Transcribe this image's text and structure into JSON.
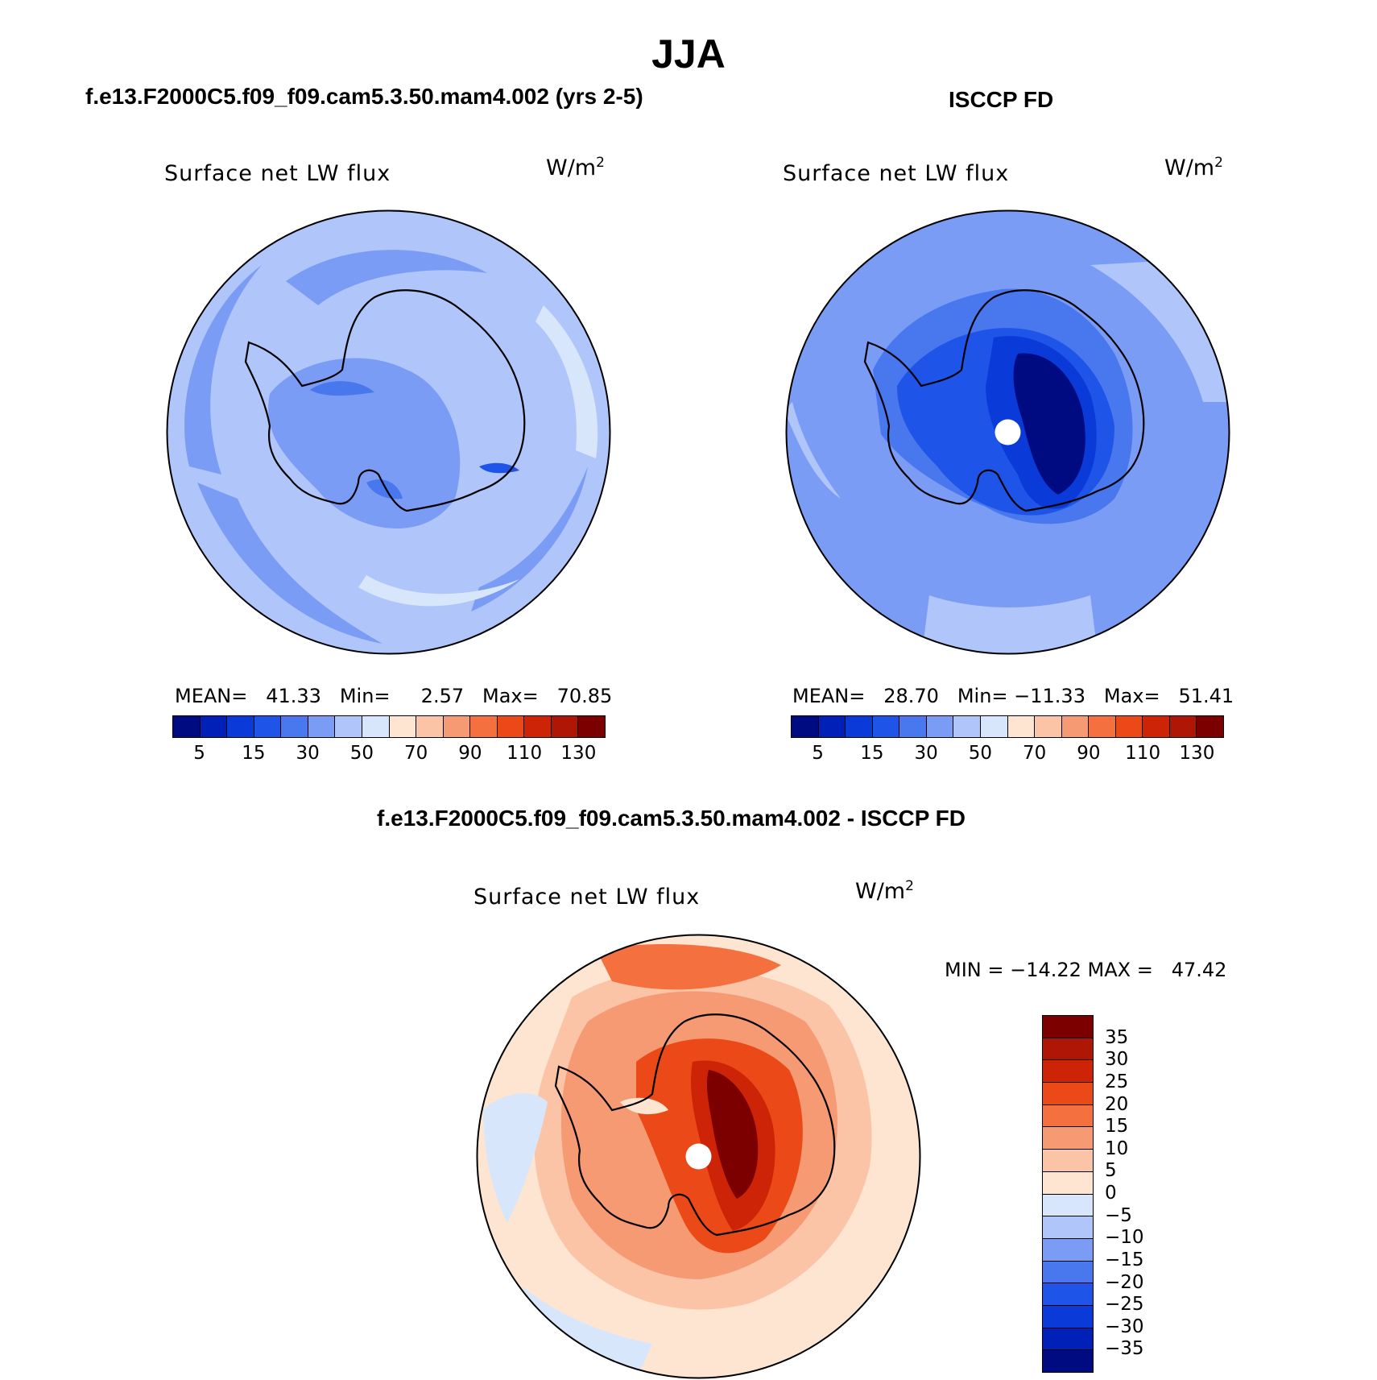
{
  "figure": {
    "title": "JJA"
  },
  "panels": {
    "model": {
      "title": "f.e13.F2000C5.f09_f09.cam5.3.50.mam4.002 (yrs 2-5)",
      "field": "Surface  net  LW  flux",
      "units": "W/m",
      "units_sup": "2",
      "stats": "MEAN=   41.33   Min=     2.57   Max=   70.85",
      "mean": 41.33,
      "min": 2.57,
      "max": 70.85
    },
    "obs": {
      "title": "ISCCP FD",
      "field": "Surface  net  LW  flux",
      "units": "W/m",
      "units_sup": "2",
      "stats": "MEAN=   28.70   Min= −11.33   Max=   51.41",
      "mean": 28.7,
      "min": -11.33,
      "max": 51.41
    },
    "diff": {
      "title": "f.e13.F2000C5.f09_f09.cam5.3.50.mam4.002 - ISCCP FD",
      "field": "Surface  net  LW  flux",
      "units": "W/m",
      "units_sup": "2",
      "stats": "MIN = −14.22 MAX =   47.42",
      "min": -14.22,
      "max": 47.42
    }
  },
  "colorbars": {
    "absolute": {
      "colors": [
        "#000b82",
        "#0020b8",
        "#0a3ad8",
        "#1e55e8",
        "#4877ee",
        "#7a9cf5",
        "#b0c6fa",
        "#d8e6fb",
        "#fde5d2",
        "#fbc4a6",
        "#f69a74",
        "#f4713f",
        "#ec4918",
        "#cd2306",
        "#b01605",
        "#7c0000"
      ],
      "labels": [
        "5",
        "15",
        "30",
        "50",
        "70",
        "90",
        "110",
        "130"
      ]
    },
    "difference": {
      "colors": [
        "#7c0000",
        "#b01605",
        "#cd2306",
        "#ec4918",
        "#f4713f",
        "#f69a74",
        "#fbc4a6",
        "#fde5d2",
        "#d8e6fb",
        "#b0c6fa",
        "#7a9cf5",
        "#4877ee",
        "#1e55e8",
        "#0a3ad8",
        "#0020b8",
        "#000b82"
      ],
      "labels": [
        "35",
        "30",
        "25",
        "20",
        "15",
        "10",
        "5",
        "0",
        "−5",
        "−10",
        "−15",
        "−20",
        "−25",
        "−30",
        "−35"
      ]
    }
  },
  "map_colors": {
    "model_base": "#b0c6fa",
    "obs_base": "#7a9cf5",
    "diff_base": "#fde5d2",
    "continent_outline": "#000000"
  }
}
